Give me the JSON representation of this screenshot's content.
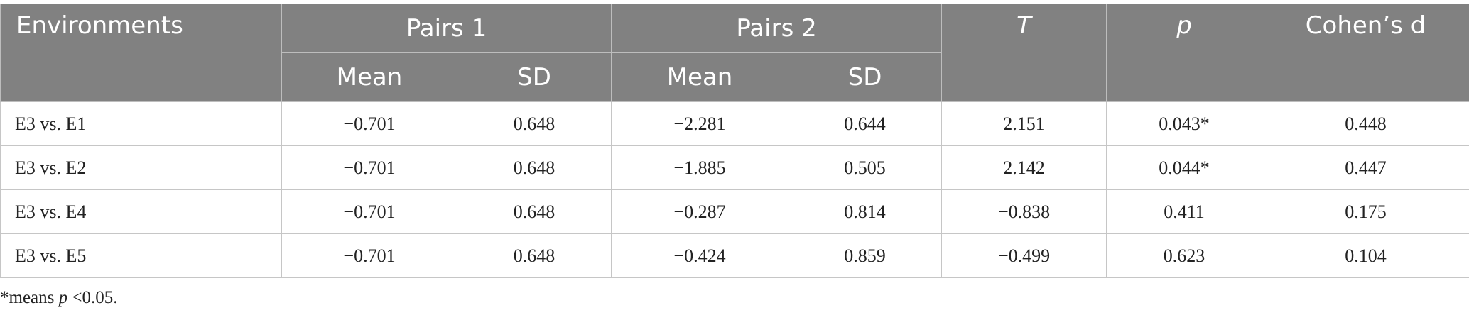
{
  "header": {
    "environments": "Environments",
    "pairs1": "Pairs 1",
    "pairs2": "Pairs 2",
    "t": "T",
    "p": "p",
    "cohens_d": "Cohen’s d",
    "mean": "Mean",
    "sd": "SD"
  },
  "rows": [
    {
      "env": "E3 vs. E1",
      "p1_mean": "−0.701",
      "p1_sd": "0.648",
      "p2_mean": "−2.281",
      "p2_sd": "0.644",
      "t": "2.151",
      "p": "0.043*",
      "d": "0.448"
    },
    {
      "env": "E3 vs. E2",
      "p1_mean": "−0.701",
      "p1_sd": "0.648",
      "p2_mean": "−1.885",
      "p2_sd": "0.505",
      "t": "2.142",
      "p": "0.044*",
      "d": "0.447"
    },
    {
      "env": "E3 vs. E4",
      "p1_mean": "−0.701",
      "p1_sd": "0.648",
      "p2_mean": "−0.287",
      "p2_sd": "0.814",
      "t": "−0.838",
      "p": "0.411",
      "d": "0.175"
    },
    {
      "env": "E3 vs. E5",
      "p1_mean": "−0.701",
      "p1_sd": "0.648",
      "p2_mean": "−0.424",
      "p2_sd": "0.859",
      "t": "−0.499",
      "p": "0.623",
      "d": "0.104"
    }
  ],
  "footnote": {
    "prefix": "*means ",
    "p": "p",
    "suffix": " <0.05."
  }
}
